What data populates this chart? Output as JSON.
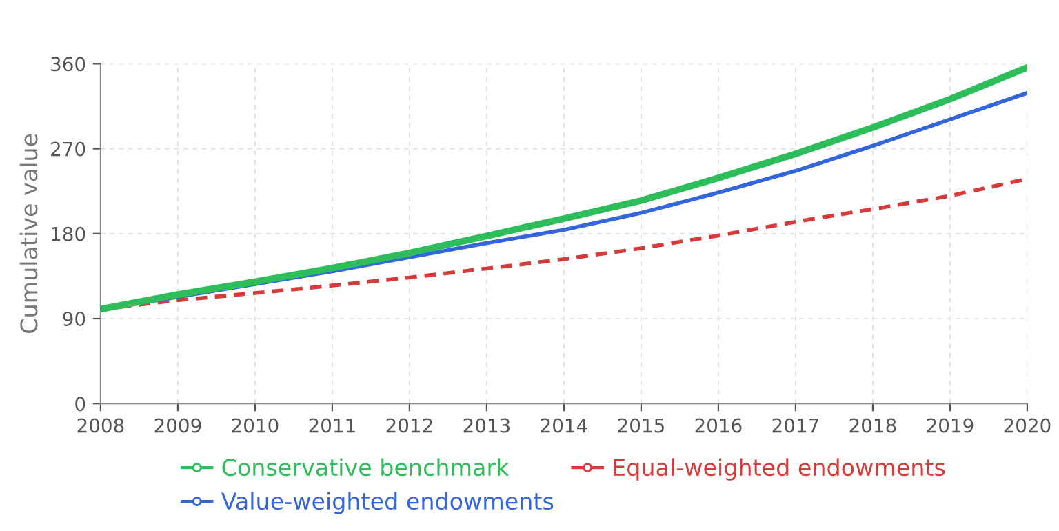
{
  "chart_data": {
    "type": "line",
    "ylabel": "Cumulative value",
    "x": [
      2008,
      2009,
      2010,
      2011,
      2012,
      2013,
      2014,
      2015,
      2016,
      2017,
      2018,
      2019,
      2020
    ],
    "xlim": [
      2008,
      2020
    ],
    "xticks": [
      2008,
      2009,
      2010,
      2011,
      2012,
      2013,
      2014,
      2015,
      2016,
      2017,
      2018,
      2019,
      2020
    ],
    "ylim": [
      0,
      360
    ],
    "yticks": [
      0,
      90,
      180,
      270,
      360
    ],
    "grid": true,
    "legend": "bottom",
    "series": [
      {
        "name": "Conservative benchmark",
        "color": "#2dbd5a",
        "line_style": "solid",
        "values": [
          100,
          115.5,
          129,
          143.5,
          159.5,
          177.5,
          196,
          215,
          239,
          264.5,
          292.5,
          322.5,
          356
        ]
      },
      {
        "name": "Value-weighted endowments",
        "color": "#3366dd",
        "line_style": "solid",
        "values": [
          100,
          113,
          126.5,
          140,
          155,
          170,
          184,
          202,
          223.5,
          246.5,
          273,
          301,
          329
        ]
      },
      {
        "name": "Equal-weighted endowments",
        "color": "#d63a3a",
        "line_style": "dashed",
        "values": [
          100,
          109.5,
          117,
          125,
          133.5,
          143,
          153,
          164.5,
          178,
          192.5,
          206,
          220,
          238
        ]
      }
    ]
  }
}
